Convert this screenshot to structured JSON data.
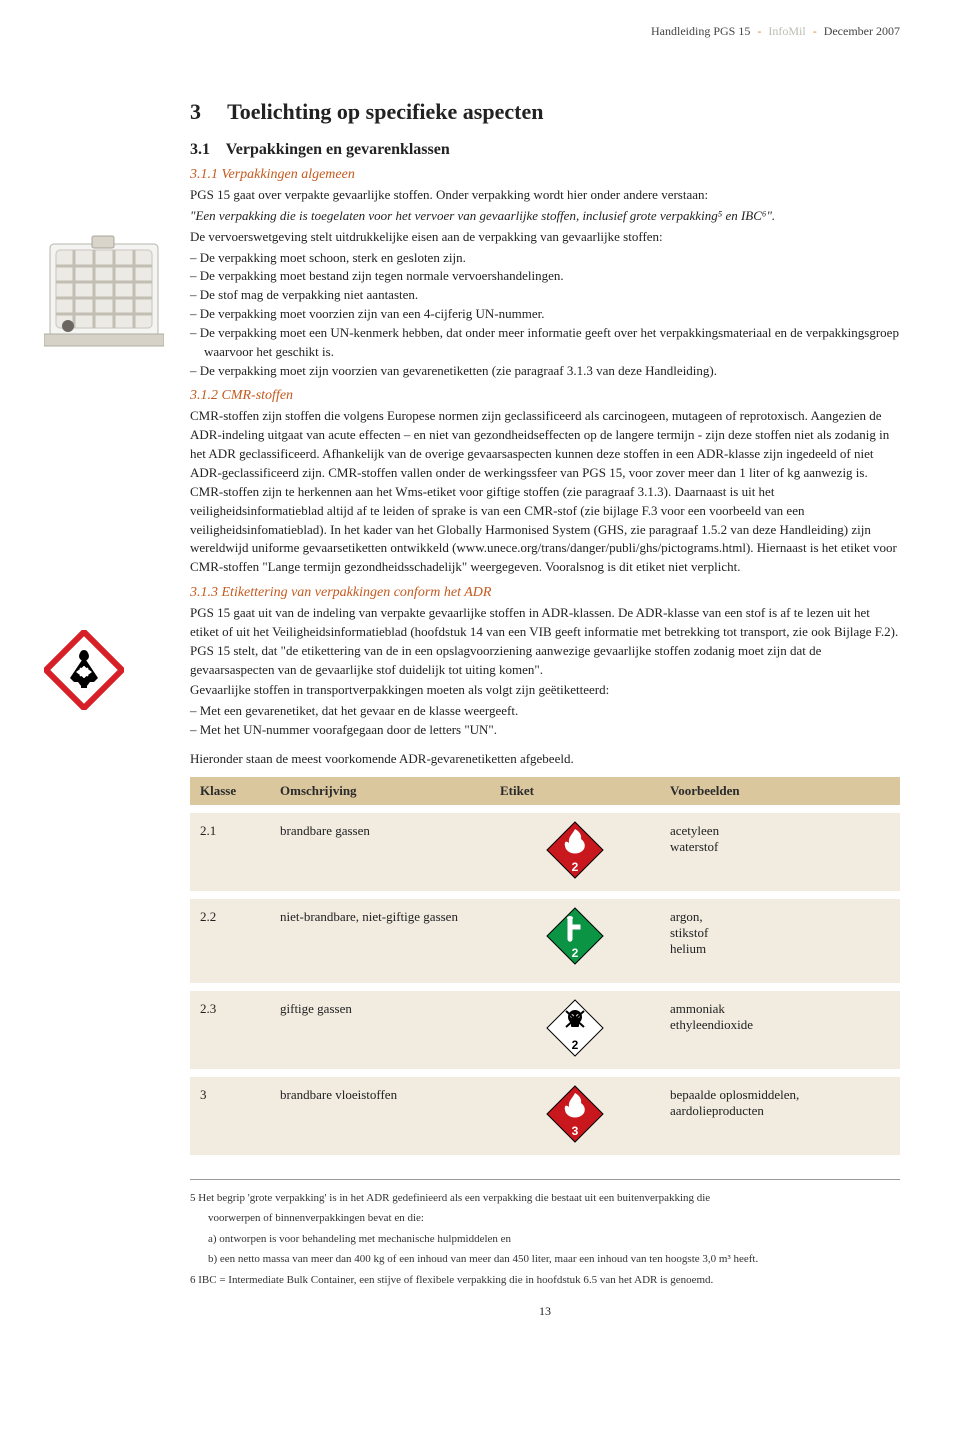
{
  "header": {
    "doc_title": "Handleiding PGS 15",
    "org": "InfoMil",
    "date": "December 2007"
  },
  "colors": {
    "accent_orange": "#c4591e",
    "table_header_bg": "#dbc79e",
    "table_row_bg": "#f1ebe0",
    "diamond_red": "#c8171d",
    "diamond_green": "#0b9444",
    "diamond_white": "#ffffff",
    "diamond_border": "#000000",
    "ghs_red": "#d61f26"
  },
  "section": {
    "number": "3",
    "title": "Toelichting op specifieke aspecten",
    "sub_number": "3.1",
    "sub_title": "Verpakkingen en gevarenklassen"
  },
  "s311": {
    "heading": "3.1.1   Verpakkingen algemeen",
    "p1": "PGS 15 gaat over verpakte gevaarlijke stoffen. Onder verpakking wordt hier onder andere verstaan:",
    "p2": "\"Een verpakking die is toegelaten voor het vervoer van gevaarlijke stoffen, inclusief grote verpakking⁵  en IBC⁶\".",
    "p3": "De vervoerswetgeving stelt uitdrukkelijke eisen aan de verpakking van gevaarlijke stoffen:",
    "bullets": [
      "De verpakking moet schoon, sterk en gesloten zijn.",
      "De verpakking moet bestand zijn tegen normale vervoershandelingen.",
      "De stof mag de verpakking niet aantasten.",
      "De verpakking moet voorzien zijn van een 4-cijferig UN-nummer.",
      "De verpakking moet een UN-kenmerk hebben, dat onder meer informatie geeft over het verpakkingsmateriaal en de verpakkingsgroep waarvoor het geschikt is.",
      "De verpakking moet zijn voorzien van gevarenetiketten (zie paragraaf 3.1.3 van deze Handleiding)."
    ]
  },
  "s312": {
    "heading": "3.1.2   CMR-stoffen",
    "body": "CMR-stoffen zijn stoffen die volgens Europese normen zijn geclassificeerd als carcinogeen, mutageen of reprotoxisch. Aangezien de ADR-indeling uitgaat van acute effecten – en niet van gezondheidseffecten op de langere termijn - zijn deze stoffen niet als zodanig in het ADR geclassificeerd. Afhankelijk van de overige gevaarsaspecten kunnen deze stoffen in een ADR-klasse zijn ingedeeld of niet ADR-geclassificeerd zijn. CMR-stoffen vallen onder de werkingssfeer van PGS 15, voor zover meer dan 1 liter of kg aanwezig is. CMR-stoffen zijn te herkennen aan het Wms-etiket voor giftige stoffen (zie paragraaf 3.1.3). Daarnaast is uit het veiligheidsinformatieblad altijd af te leiden of sprake is van een CMR-stof (zie bijlage F.3 voor een voorbeeld van een veiligheidsinfomatieblad). In het kader van het Globally Harmonised System (GHS, zie paragraaf 1.5.2 van deze Handleiding) zijn wereldwijd uniforme gevaarsetiketten ontwikkeld (www.unece.org/trans/danger/publi/ghs/pictograms.html). Hiernaast is het etiket voor CMR-stoffen \"Lange termijn gezondheidsschadelijk\" weergegeven. Vooralsnog is dit etiket niet verplicht."
  },
  "s313": {
    "heading": " 3.1.3  Etikettering van verpakkingen conform het ADR",
    "p1": "PGS 15 gaat uit van de indeling van verpakte gevaarlijke stoffen in ADR-klassen. De ADR-klasse van een stof is af te lezen uit het etiket of uit het Veiligheidsinformatieblad (hoofdstuk 14 van een VIB geeft informatie met betrekking tot transport, zie ook Bijlage F.2). PGS 15 stelt, dat \"de etikettering van de in een opslagvoorziening aanwezige gevaarlijke stoffen zodanig moet zijn dat de gevaarsaspecten van de gevaarlijke stof duidelijk tot uiting komen\".",
    "p2": "Gevaarlijke stoffen in transportverpakkingen moeten als volgt zijn geëtiketteerd:",
    "bullets": [
      "Met een gevarenetiket, dat het gevaar en de klasse weergeeft.",
      "Met het UN-nummer voorafgegaan door de letters \"UN\"."
    ],
    "p3": "Hieronder staan de meest voorkomende ADR-gevarenetiketten afgebeeld."
  },
  "table": {
    "headers": {
      "klasse": "Klasse",
      "oms": "Omschrijving",
      "etiket": "Etiket",
      "vb": "Voorbeelden"
    },
    "rows": [
      {
        "klasse": "2.1",
        "oms": "brandbare gassen",
        "vb": "acetyleen\nwaterstof",
        "etiket": {
          "fill": "#c8171d",
          "icon": "flame",
          "num": "2",
          "textcolor": "#ffffff"
        }
      },
      {
        "klasse": "2.2",
        "oms": "niet-brandbare, niet-giftige gassen",
        "vb": "argon,\nstikstof\nhelium",
        "etiket": {
          "fill": "#0b9444",
          "icon": "cylinder",
          "num": "2",
          "textcolor": "#ffffff"
        }
      },
      {
        "klasse": "2.3",
        "oms": "giftige gassen",
        "vb": "ammoniak\nethyleendioxide",
        "etiket": {
          "fill": "#ffffff",
          "icon": "skull",
          "num": "2",
          "textcolor": "#000000"
        }
      },
      {
        "klasse": "3",
        "oms": "brandbare vloeistoffen",
        "vb": "bepaalde oplosmiddelen, aardolieproducten",
        "etiket": {
          "fill": "#c8171d",
          "icon": "flame",
          "num": "3",
          "textcolor": "#ffffff"
        }
      }
    ]
  },
  "footnotes": {
    "f5a": "5  Het begrip 'grote verpakking' is in het ADR gedefinieerd als een verpakking die bestaat uit een buitenverpakking die",
    "f5b": "voorwerpen of binnenverpakkingen bevat en die:",
    "f5c": "a) ontworpen is voor behandeling met mechanische hulpmiddelen en",
    "f5d": "b) een netto massa van meer dan 400 kg of een inhoud van meer dan 450 liter, maar een inhoud van ten hoogste 3,0 m³ heeft.",
    "f6": "6  IBC = Intermediate Bulk Container, een stijve of flexibele verpakking die in hoofdstuk 6.5 van het ADR is genoemd."
  },
  "pagenum": "13"
}
